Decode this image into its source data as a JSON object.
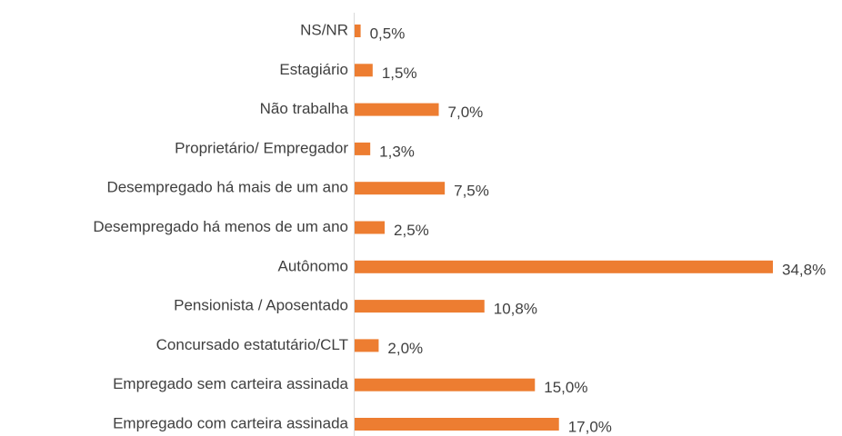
{
  "chart_data": {
    "type": "bar",
    "orientation": "horizontal",
    "color": "#ed7d31",
    "categories": [
      "NS/NR",
      "Estagiário",
      "Não trabalha",
      "Proprietário/ Empregador",
      "Desempregado há mais de um ano",
      "Desempregado há menos de um ano",
      "Autônomo",
      "Pensionista / Aposentado",
      "Concursado estatutário/CLT",
      "Empregado sem carteira assinada",
      "Empregado com carteira assinada"
    ],
    "values": [
      0.5,
      1.5,
      7.0,
      1.3,
      7.5,
      2.5,
      34.8,
      10.8,
      2.0,
      15.0,
      17.0
    ],
    "value_labels": [
      "0,5%",
      "1,5%",
      "7,0%",
      "1,3%",
      "7,5%",
      "2,5%",
      "34,8%",
      "10,8%",
      "2,0%",
      "15,0%",
      "17,0%"
    ]
  }
}
